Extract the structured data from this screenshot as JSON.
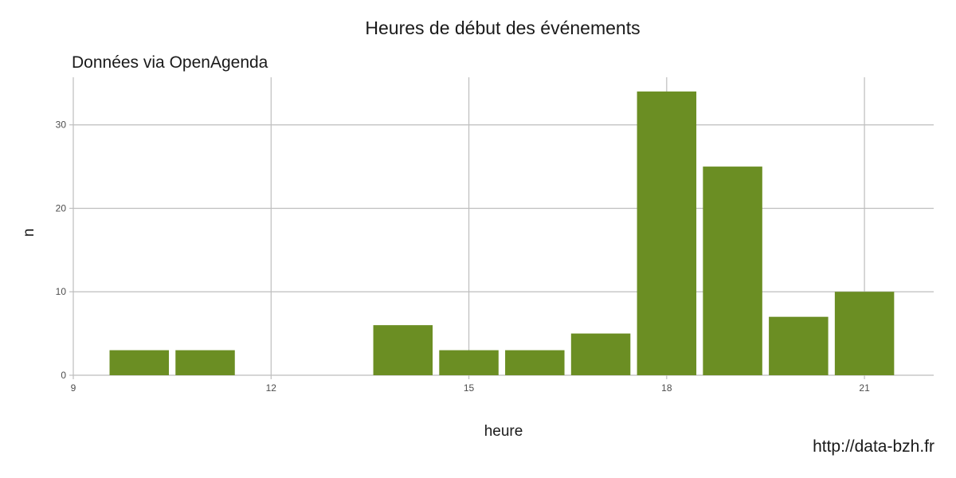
{
  "chart_data": {
    "type": "bar",
    "title": "Heures de début des événements",
    "subtitle": "Données via OpenAgenda",
    "caption": "http://data-bzh.fr",
    "xlabel": "heure",
    "ylabel": "n",
    "x": [
      10,
      11,
      14,
      15,
      16,
      17,
      18,
      19,
      20,
      21
    ],
    "values": [
      3,
      3,
      6,
      3,
      3,
      5,
      34,
      25,
      7,
      10
    ],
    "xlim": [
      9,
      22.05
    ],
    "ylim": [
      0,
      35.7
    ],
    "xticks": [
      "9",
      "12",
      "15",
      "18",
      "21"
    ],
    "yticks": [
      "0",
      "10",
      "20",
      "30"
    ],
    "bar_color": "#6b8e23",
    "grid": true
  }
}
